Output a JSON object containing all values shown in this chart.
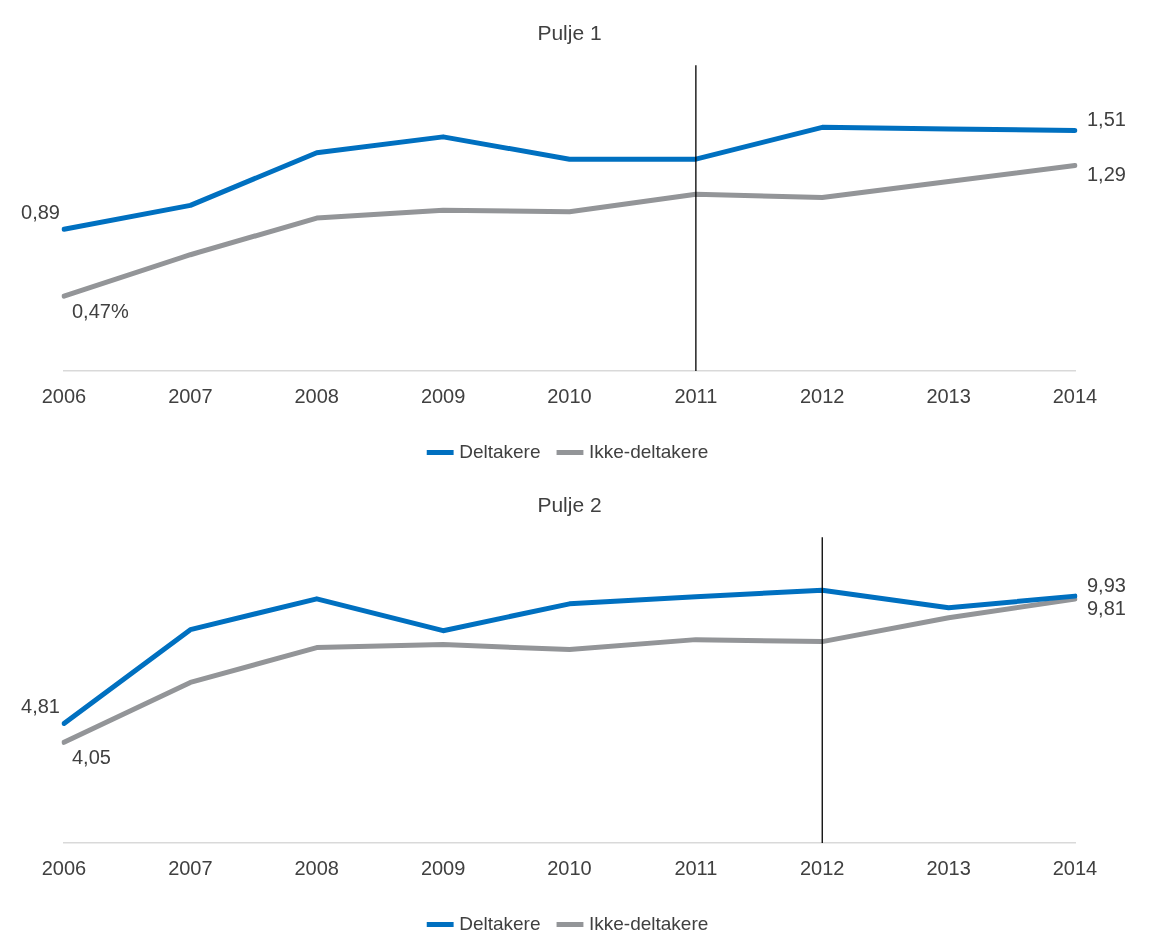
{
  "chart_data": [
    {
      "type": "line",
      "title": "Pulje 1",
      "categories": [
        "2006",
        "2007",
        "2008",
        "2009",
        "2010",
        "2011",
        "2012",
        "2013",
        "2014"
      ],
      "ylim": [
        0,
        1.92
      ],
      "tick_labels": "x",
      "grid": false,
      "legend": "bottom",
      "marker": "none",
      "line_style": "solid",
      "series": [
        {
          "name": "Deltakere",
          "color": "#0070c0",
          "values": [
            0.89,
            1.04,
            1.37,
            1.47,
            1.33,
            1.33,
            1.53,
            1.52,
            1.51
          ],
          "value_labels": [
            "0,89",
            null,
            null,
            null,
            null,
            null,
            null,
            null,
            "1,51"
          ]
        },
        {
          "name": "Ikke-deltakere",
          "color": "#939598",
          "values": [
            0.47,
            0.73,
            0.96,
            1.01,
            1.0,
            1.11,
            1.09,
            1.19,
            1.29
          ],
          "value_labels": [
            "0,47%",
            null,
            null,
            null,
            null,
            null,
            null,
            null,
            "1,29"
          ]
        }
      ],
      "ref_lines": [
        {
          "axis": "x",
          "value": "2011",
          "color": "#000000"
        }
      ]
    },
    {
      "type": "line",
      "title": "Pulje 2",
      "categories": [
        "2006",
        "2007",
        "2008",
        "2009",
        "2010",
        "2011",
        "2012",
        "2013",
        "2014"
      ],
      "ylim": [
        0,
        12.3
      ],
      "tick_labels": "x",
      "grid": false,
      "legend": "bottom",
      "marker": "none",
      "line_style": "solid",
      "series": [
        {
          "name": "Deltakere",
          "color": "#0070c0",
          "values": [
            4.81,
            8.58,
            9.82,
            8.54,
            9.62,
            9.9,
            10.17,
            9.46,
            9.93
          ],
          "value_labels": [
            "4,81",
            null,
            null,
            null,
            null,
            null,
            null,
            null,
            "9,93"
          ]
        },
        {
          "name": "Ikke-deltakere",
          "color": "#939598",
          "values": [
            4.05,
            6.46,
            7.86,
            7.98,
            7.78,
            8.18,
            8.1,
            9.06,
            9.81
          ],
          "value_labels": [
            "4,05",
            null,
            null,
            null,
            null,
            null,
            null,
            null,
            "9,81"
          ]
        }
      ],
      "ref_lines": [
        {
          "axis": "x",
          "value": "2012",
          "color": "#000000"
        }
      ]
    }
  ]
}
